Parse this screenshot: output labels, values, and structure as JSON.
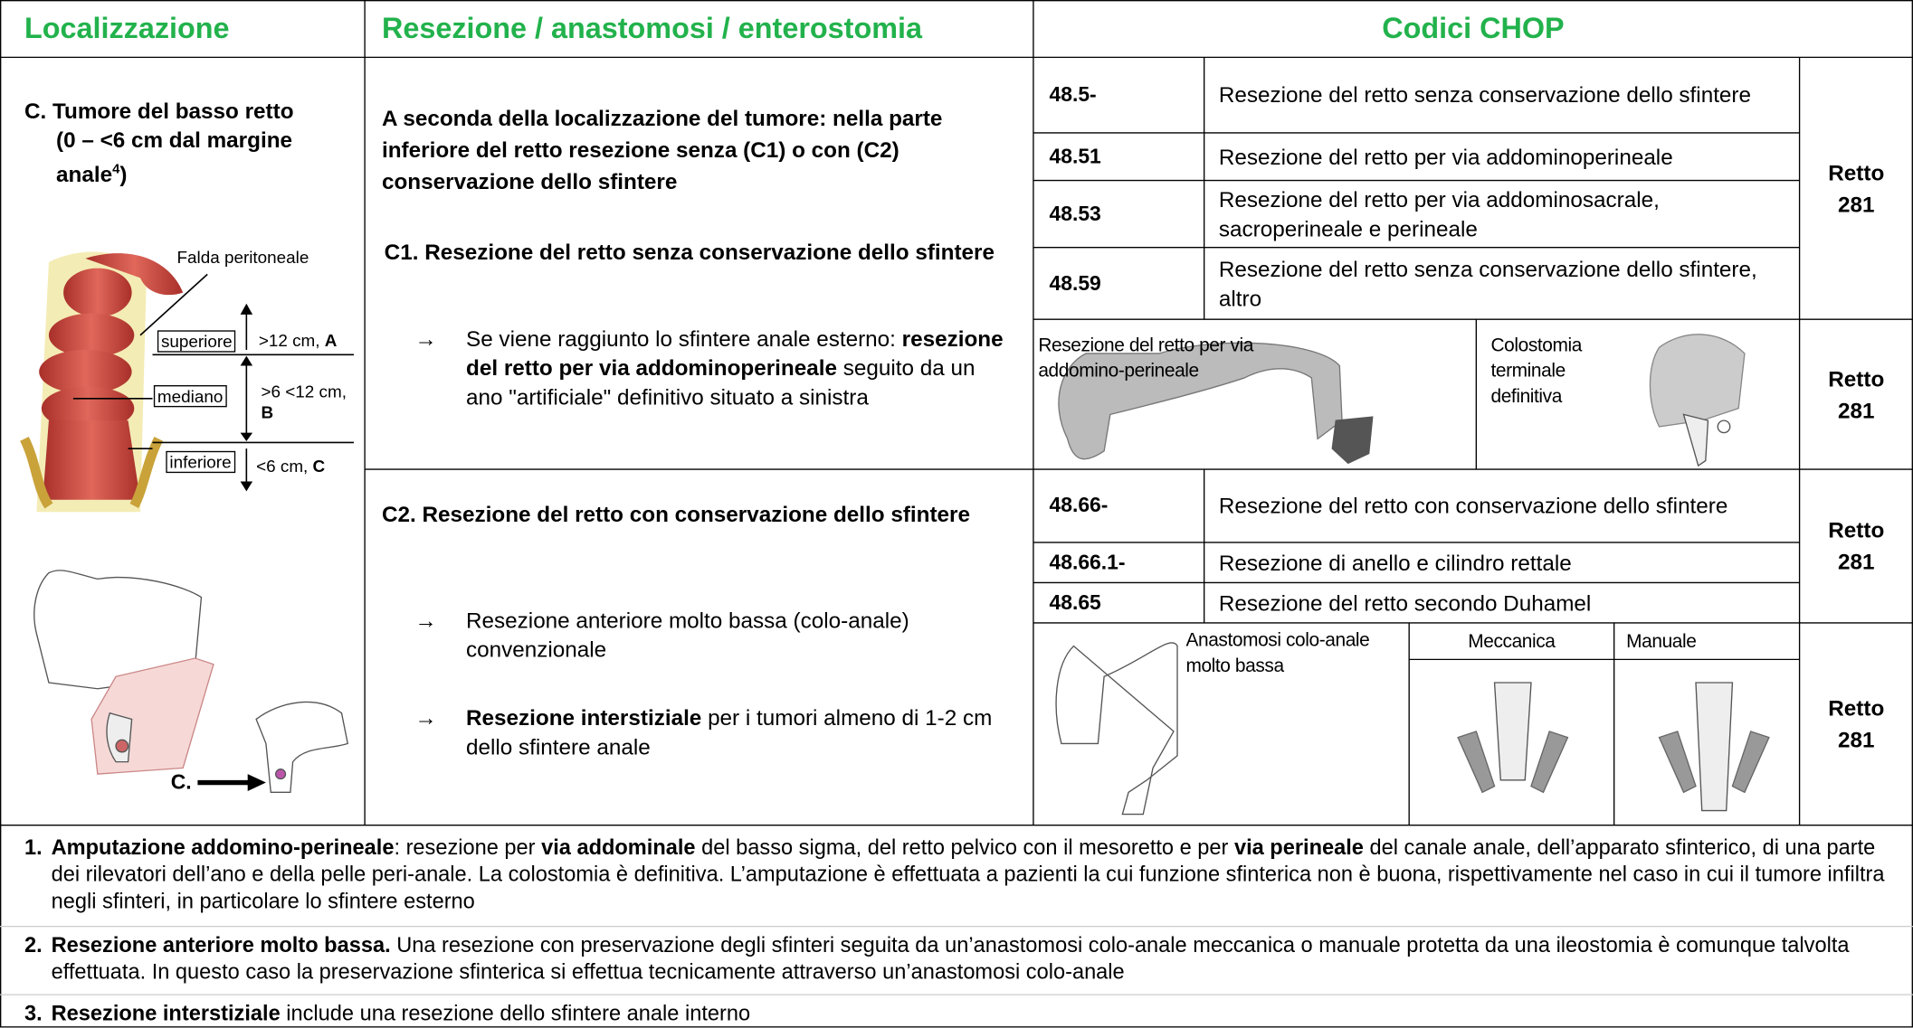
{
  "header": {
    "localization": "Localizzazione",
    "procedure": "Resezione / anastomosi / enterostomia",
    "codes": "Codici CHOP"
  },
  "location": {
    "title": "C. Tumore del basso retto",
    "range": [
      {
        "text": "(0 – <6 cm dal margine anale"
      },
      {
        "text": "4",
        "sup": true
      },
      {
        "text": ")"
      }
    ],
    "figure": {
      "peritoneal": "Falda peritoneale",
      "upper": "superiore",
      "upper_range": ">12 cm, ",
      "upper_zone": "A",
      "middle": "mediano",
      "middle_range": ">6 <12 cm,",
      "middle_zone": "B",
      "lower": "inferiore",
      "lower_range": "<6 cm, ",
      "lower_zone": "C",
      "pointer": "C."
    }
  },
  "procedure": {
    "intro": "A seconda della localizzazione del tumore: nella parte inferiore del retto resezione senza (C1) o con (C2) conservazione dello sfintere",
    "c1": {
      "heading": "C1. Resezione del retto senza conservazione dello sfintere",
      "items": [
        {
          "marker": "→",
          "text": [
            {
              "text": "Se viene raggiunto lo sfintere anale esterno: "
            },
            {
              "text": "resezione del retto per via addominoperineale",
              "bold": true
            },
            {
              "text": " seguito da un ano \"artificiale\" definitivo situato a sinistra"
            }
          ]
        }
      ]
    },
    "c2": {
      "heading": "C2. Resezione del retto con conservazione dello sfintere",
      "items": [
        {
          "marker": "→",
          "text": [
            {
              "text": "Resezione anteriore molto bassa (colo-anale) convenzionale"
            }
          ]
        },
        {
          "marker": "→",
          "text": [
            {
              "text": "Resezione interstiziale",
              "bold": true
            },
            {
              "text": " per i tumori almeno di 1-2 cm dello sfintere anale"
            }
          ]
        }
      ]
    }
  },
  "codes": {
    "group1": {
      "rows": [
        [
          "48.5-",
          "Resezione del retto senza conservazione dello sfintere"
        ],
        [
          "48.51",
          "Resezione del retto per via addominoperineale"
        ],
        [
          "48.53",
          "Resezione del retto per via addominosacrale, sacroperineale e perineale"
        ],
        [
          "48.59",
          "Resezione del retto senza conservazione dello sfintere, altro"
        ]
      ],
      "group": "Retto",
      "number": "281"
    },
    "figure1": {
      "resection": "Resezione del retto per via addomino-perineale",
      "colostomy": "Colostomia terminale definitiva",
      "group": "Retto",
      "number": "281"
    },
    "group2": {
      "rows": [
        [
          "48.66-",
          "Resezione del retto con conservazione dello sfintere"
        ],
        [
          "48.66.1-",
          "Resezione di anello e cilindro rettale"
        ],
        [
          "48.65",
          "Resezione del retto secondo Duhamel"
        ]
      ],
      "group": "Retto",
      "number": "281"
    },
    "figure2": {
      "anastomosis": "Anastomosi colo-anale molto bassa",
      "mechanical": "Meccanica",
      "manual": "Manuale",
      "group": "Retto",
      "number": "281"
    }
  },
  "notes": [
    {
      "number": "1.",
      "text": [
        {
          "text": "Amputazione addomino-perineale",
          "bold": true
        },
        {
          "text": ": resezione per "
        },
        {
          "text": "via addominale",
          "bold": true
        },
        {
          "text": " del basso sigma, del retto pelvico con il mesoretto e per "
        },
        {
          "text": "via perineale",
          "bold": true
        },
        {
          "text": " del canale anale, dell’apparato sfinterico, di una parte dei rilevatori dell’ano e della pelle peri-anale. La colostomia è definitiva. L’amputazione è effettuata a pazienti la cui funzione sfinterica non è buona, rispettivamente nel caso in cui il tumore infiltra negli sfinteri, in particolare lo sfintere esterno"
        }
      ]
    },
    {
      "number": "2.",
      "text": [
        {
          "text": "Resezione anteriore molto bassa.",
          "bold": true
        },
        {
          "text": " Una resezione con preservazione degli sfinteri seguita da un’anastomosi colo-anale meccanica o manuale protetta da una ileostomia è comunque talvolta effettuata. In questo caso la preservazione sfinterica si effettua tecnicamente attraverso un’anastomosi colo-anale"
        }
      ]
    },
    {
      "number": "3.",
      "text": [
        {
          "text": "Resezione interstiziale",
          "bold": true
        },
        {
          "text": " include una resezione dello sfintere anale interno"
        }
      ]
    }
  ]
}
